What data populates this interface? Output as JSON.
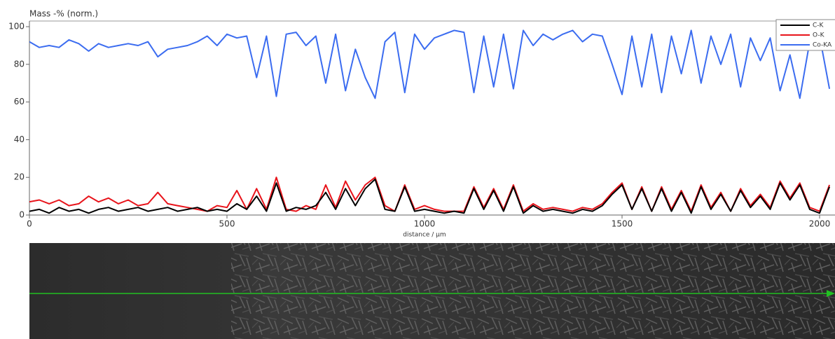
{
  "chart_data": {
    "type": "line",
    "y_label": "Mass  -% (norm.)",
    "x_label": "distance / µm",
    "x": [
      0,
      25,
      50,
      75,
      100,
      125,
      150,
      175,
      200,
      225,
      250,
      275,
      300,
      325,
      350,
      375,
      400,
      425,
      450,
      475,
      500,
      525,
      550,
      575,
      600,
      625,
      650,
      675,
      700,
      725,
      750,
      775,
      800,
      825,
      850,
      875,
      900,
      925,
      950,
      975,
      1000,
      1025,
      1050,
      1075,
      1100,
      1125,
      1150,
      1175,
      1200,
      1225,
      1250,
      1275,
      1300,
      1325,
      1350,
      1375,
      1400,
      1425,
      1450,
      1475,
      1500,
      1525,
      1550,
      1575,
      1600,
      1625,
      1650,
      1675,
      1700,
      1725,
      1750,
      1775,
      1800,
      1825,
      1850,
      1875,
      1900,
      1925,
      1950,
      1975,
      2000,
      2025
    ],
    "series": [
      {
        "name": "C-K",
        "color": "#000000",
        "values": [
          2,
          3,
          1,
          4,
          2,
          3,
          1,
          3,
          4,
          2,
          3,
          4,
          2,
          3,
          4,
          2,
          3,
          4,
          2,
          3,
          2,
          6,
          3,
          10,
          2,
          17,
          2,
          4,
          3,
          5,
          12,
          3,
          14,
          5,
          14,
          19,
          3,
          2,
          15,
          2,
          3,
          2,
          1,
          2,
          1,
          14,
          3,
          13,
          2,
          15,
          1,
          5,
          2,
          3,
          2,
          1,
          3,
          2,
          5,
          11,
          16,
          3,
          14,
          2,
          14,
          2,
          12,
          1,
          15,
          3,
          11,
          2,
          13,
          4,
          10,
          3,
          17,
          8,
          16,
          3,
          1,
          15
        ]
      },
      {
        "name": "O-K",
        "color": "#e8141b",
        "values": [
          7,
          8,
          6,
          8,
          5,
          6,
          10,
          7,
          9,
          6,
          8,
          5,
          6,
          12,
          6,
          5,
          4,
          3,
          2,
          5,
          4,
          13,
          3,
          14,
          3,
          20,
          3,
          2,
          5,
          3,
          16,
          4,
          18,
          8,
          16,
          20,
          5,
          2,
          16,
          3,
          5,
          3,
          2,
          2,
          2,
          15,
          4,
          14,
          3,
          16,
          2,
          6,
          3,
          4,
          3,
          2,
          4,
          3,
          6,
          12,
          17,
          3,
          15,
          2,
          15,
          3,
          13,
          2,
          16,
          4,
          12,
          2,
          14,
          5,
          11,
          4,
          18,
          9,
          17,
          4,
          2,
          16
        ]
      },
      {
        "name": "Co-KA",
        "color": "#3b6cf0",
        "values": [
          92,
          89,
          90,
          89,
          93,
          91,
          87,
          91,
          89,
          90,
          91,
          90,
          92,
          84,
          88,
          89,
          90,
          92,
          95,
          90,
          96,
          94,
          95,
          73,
          95,
          63,
          96,
          97,
          90,
          95,
          70,
          96,
          66,
          88,
          73,
          62,
          92,
          97,
          65,
          96,
          88,
          94,
          96,
          98,
          97,
          65,
          95,
          68,
          96,
          67,
          98,
          90,
          96,
          93,
          96,
          98,
          92,
          96,
          95,
          80,
          64,
          95,
          68,
          96,
          65,
          95,
          75,
          98,
          70,
          95,
          80,
          96,
          68,
          94,
          82,
          94,
          66,
          85,
          62,
          92,
          95,
          67
        ]
      }
    ],
    "xlim": [
      0,
      2039
    ],
    "xticks": [
      0,
      500,
      1000,
      1500,
      2000
    ],
    "ylim": [
      0,
      103
    ],
    "yticks": [
      0,
      20,
      40,
      60,
      80,
      100
    ],
    "grid": false,
    "legend": "top-right"
  }
}
